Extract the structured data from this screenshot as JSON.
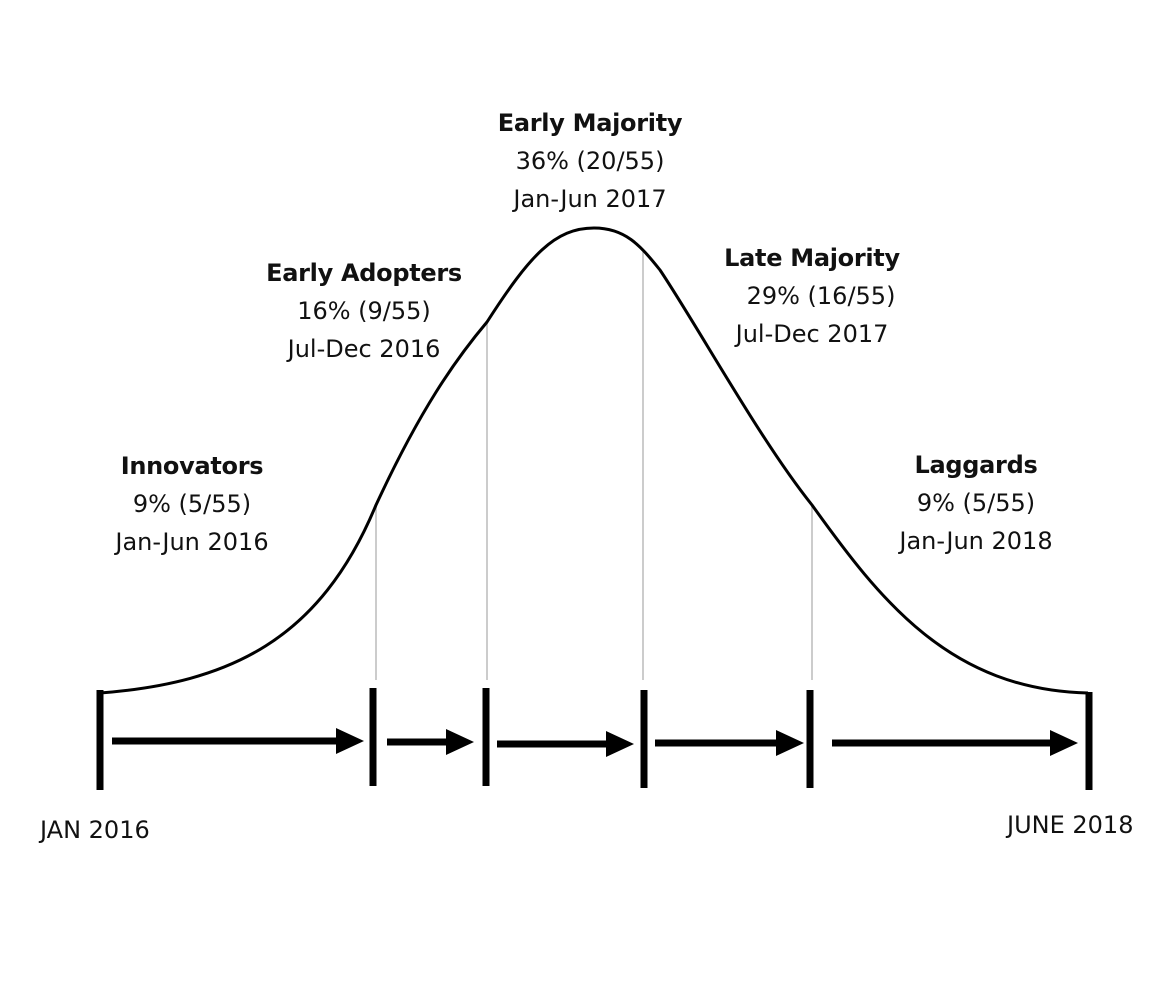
{
  "segments": [
    {
      "key": "innovators",
      "name": "Innovators",
      "pct": "9% (5/55)",
      "period": "Jan-Jun 2016"
    },
    {
      "key": "early-adopters",
      "name": "Early Adopters",
      "pct": "16% (9/55)",
      "period": "Jul-Dec 2016"
    },
    {
      "key": "early-majority",
      "name": "Early Majority",
      "pct": "36% (20/55)",
      "period": "Jan-Jun 2017"
    },
    {
      "key": "late-majority",
      "name": "Late Majority",
      "pct": "29% (16/55)",
      "period": "Jul-Dec 2017"
    },
    {
      "key": "laggards",
      "name": "Laggards",
      "pct": "9% (5/55)",
      "period": "Jan-Jun 2018"
    }
  ],
  "timeline": {
    "start_label": "JAN 2016",
    "end_label": "JUNE 2018"
  },
  "colors": {
    "ink": "#000000",
    "divider": "#bbbbbb",
    "text": "#111111"
  }
}
